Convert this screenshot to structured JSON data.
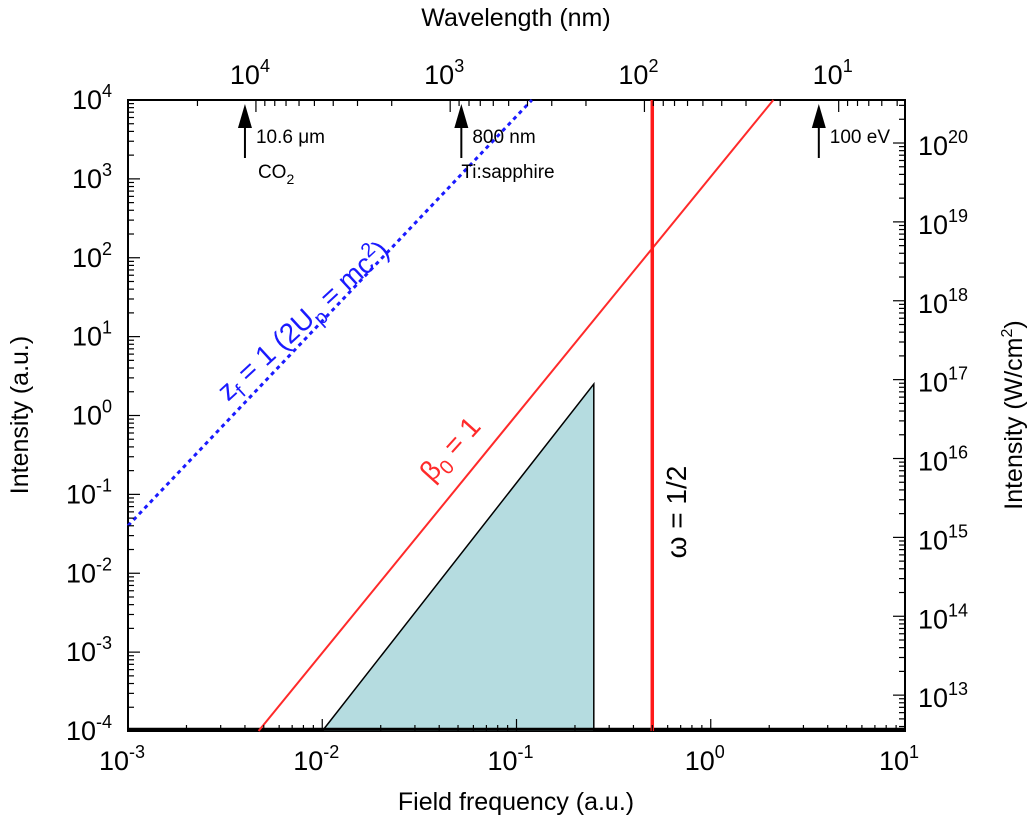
{
  "chart_data": {
    "type": "line",
    "xlabel": "Field frequency (a.u.)",
    "ylabel": "Intensity (a.u.)",
    "top_xlabel": "Wavelength (nm)",
    "right_ylabel": "Intensity (W/cm²)",
    "right_ylabel_base": "Intensity (W/cm",
    "right_ylabel_sup": "2",
    "right_ylabel_end": ")",
    "x_scale": "log",
    "y_scale": "log",
    "xlim": [
      0.001,
      10
    ],
    "ylim": [
      0.0001,
      10000
    ],
    "grid": false,
    "x_ticks": [
      {
        "base": "10",
        "exp": "-3",
        "value": 0.001
      },
      {
        "base": "10",
        "exp": "-2",
        "value": 0.01
      },
      {
        "base": "10",
        "exp": "-1",
        "value": 0.1
      },
      {
        "base": "10",
        "exp": "0",
        "value": 1
      },
      {
        "base": "10",
        "exp": "1",
        "value": 10
      }
    ],
    "y_ticks": [
      {
        "base": "10",
        "exp": "-4",
        "value": 0.0001
      },
      {
        "base": "10",
        "exp": "-3",
        "value": 0.001
      },
      {
        "base": "10",
        "exp": "-2",
        "value": 0.01
      },
      {
        "base": "10",
        "exp": "-1",
        "value": 0.1
      },
      {
        "base": "10",
        "exp": "0",
        "value": 1
      },
      {
        "base": "10",
        "exp": "1",
        "value": 10
      },
      {
        "base": "10",
        "exp": "2",
        "value": 100
      },
      {
        "base": "10",
        "exp": "3",
        "value": 1000
      },
      {
        "base": "10",
        "exp": "4",
        "value": 10000
      }
    ],
    "top_ticks": [
      {
        "base": "10",
        "exp": "4",
        "wavelength_nm": 10000
      },
      {
        "base": "10",
        "exp": "3",
        "wavelength_nm": 1000
      },
      {
        "base": "10",
        "exp": "2",
        "wavelength_nm": 100
      },
      {
        "base": "10",
        "exp": "1",
        "wavelength_nm": 10
      }
    ],
    "right_ticks": [
      {
        "base": "10",
        "exp": "13",
        "intensity_wcm2": 10000000000000.0
      },
      {
        "base": "10",
        "exp": "14",
        "intensity_wcm2": 100000000000000.0
      },
      {
        "base": "10",
        "exp": "15",
        "intensity_wcm2": 1000000000000000.0
      },
      {
        "base": "10",
        "exp": "16",
        "intensity_wcm2": 1e+16
      },
      {
        "base": "10",
        "exp": "17",
        "intensity_wcm2": 1e+17
      },
      {
        "base": "10",
        "exp": "18",
        "intensity_wcm2": 1e+18
      },
      {
        "base": "10",
        "exp": "19",
        "intensity_wcm2": 1e+19
      },
      {
        "base": "10",
        "exp": "20",
        "intensity_wcm2": 1e+20
      }
    ],
    "series": [
      {
        "name": "z_f = 1 (2U_p = mc²)",
        "label_parts": {
          "main": "z",
          "sub1": "f",
          "mid": " = 1 (2U",
          "sub2": "p",
          "end1": " = mc",
          "sup": "2",
          "end2": ")"
        },
        "color": "#1a1aff",
        "style": "dotted",
        "x": [
          0.001,
          0.12
        ],
        "y": [
          0.04,
          10000
        ]
      },
      {
        "name": "β_0 = 1",
        "label_parts": {
          "main": "β",
          "sub": "0",
          "end": " = 1"
        },
        "color": "#ff2a2a",
        "style": "solid",
        "x": [
          0.0047,
          2.1
        ],
        "y": [
          0.0001,
          10000
        ]
      },
      {
        "name": "ω = 1/2",
        "label": "ω = 1/2",
        "color": "#ff1a1a",
        "style": "solid-thick",
        "x": [
          0.5,
          0.5
        ],
        "y": [
          0.0001,
          10000
        ]
      }
    ],
    "shaded_region": {
      "color": "#b5dce0",
      "x": [
        0.01,
        0.25,
        0.25
      ],
      "y": [
        0.0001,
        2.5,
        0.0001
      ]
    },
    "baseline_y": 0.0001,
    "annotations": [
      {
        "x": 0.004,
        "line1": "10.6 μm",
        "line2_base": "CO",
        "line2_sub": "2"
      },
      {
        "x": 0.052,
        "line1": "800 nm",
        "line2_base": "Ti:sapphire",
        "line2_sub": ""
      },
      {
        "x": 3.6,
        "line1": "100 eV",
        "line2_base": "",
        "line2_sub": ""
      }
    ]
  }
}
